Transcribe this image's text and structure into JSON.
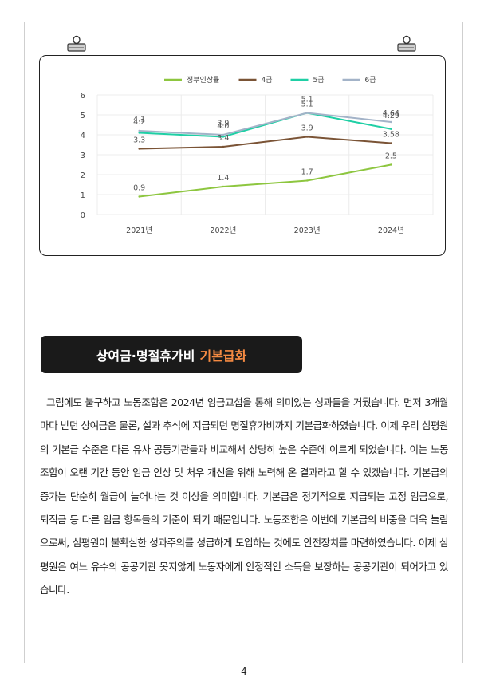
{
  "chart_data": {
    "type": "line",
    "categories": [
      "2021년",
      "2022년",
      "2023년",
      "2024년"
    ],
    "ylim": [
      0,
      6
    ],
    "yticks": [
      0,
      1,
      2,
      3,
      4,
      5,
      6
    ],
    "grid": true,
    "legend_position": "top",
    "series": [
      {
        "name": "정부인상률",
        "color": "#8dc63f",
        "values": [
          0.9,
          1.4,
          1.7,
          2.5
        ],
        "labels": [
          "0.9",
          "1.4",
          "1.7",
          "2.5"
        ]
      },
      {
        "name": "4급",
        "color": "#7a5335",
        "values": [
          3.3,
          3.4,
          3.9,
          3.58
        ],
        "labels": [
          "3.3",
          "3.4",
          "3.9",
          "3.58"
        ]
      },
      {
        "name": "5급",
        "color": "#1fcfa5",
        "values": [
          4.1,
          3.9,
          5.1,
          4.29
        ],
        "labels": [
          "4.1",
          "3.9",
          "5.1",
          "4.29"
        ]
      },
      {
        "name": "6급",
        "color": "#a3b3c8",
        "values": [
          4.2,
          4.0,
          5.1,
          4.64
        ],
        "labels": [
          "4.2",
          "4.0",
          "5.1",
          "4.64"
        ]
      }
    ]
  },
  "section": {
    "title_main": "상여금·명절휴가비",
    "title_accent": "기본급화",
    "accent_color": "#f58a42"
  },
  "body": {
    "paragraph": "그럼에도 불구하고 노동조합은 2024년 임금교섭을 통해 의미있는 성과들을 거뒀습니다. 먼저 3개월마다 받던 상여금은 물론, 설과 추석에 지급되던 명절휴가비까지 기본급화하였습니다. 이제 우리 심평원의 기본급 수준은 다른 유사 공동기관들과 비교해서 상당히 높은 수준에 이르게 되었습니다. 이는 노동조합이 오랜 기간 동안 임금 인상 및 처우 개선을 위해 노력해 온 결과라고 할 수 있겠습니다. 기본급의 증가는 단순히 월급이 늘어나는 것 이상을 의미합니다. 기본급은 정기적으로 지급되는 고정 임금으로, 퇴직금 등 다른 임금 항목들의 기준이 되기 때문입니다. 노동조합은 이번에 기본급의 비중을 더욱 늘림으로써, 심평원이 불확실한 성과주의를 성급하게 도입하는 것에도 안전장치를 마련하였습니다. 이제 심평원은 여느 유수의 공공기관 못지않게 노동자에게 안정적인 소득을 보장하는 공공기관이 되어가고 있습니다."
  },
  "footer": {
    "page_number": "4"
  }
}
